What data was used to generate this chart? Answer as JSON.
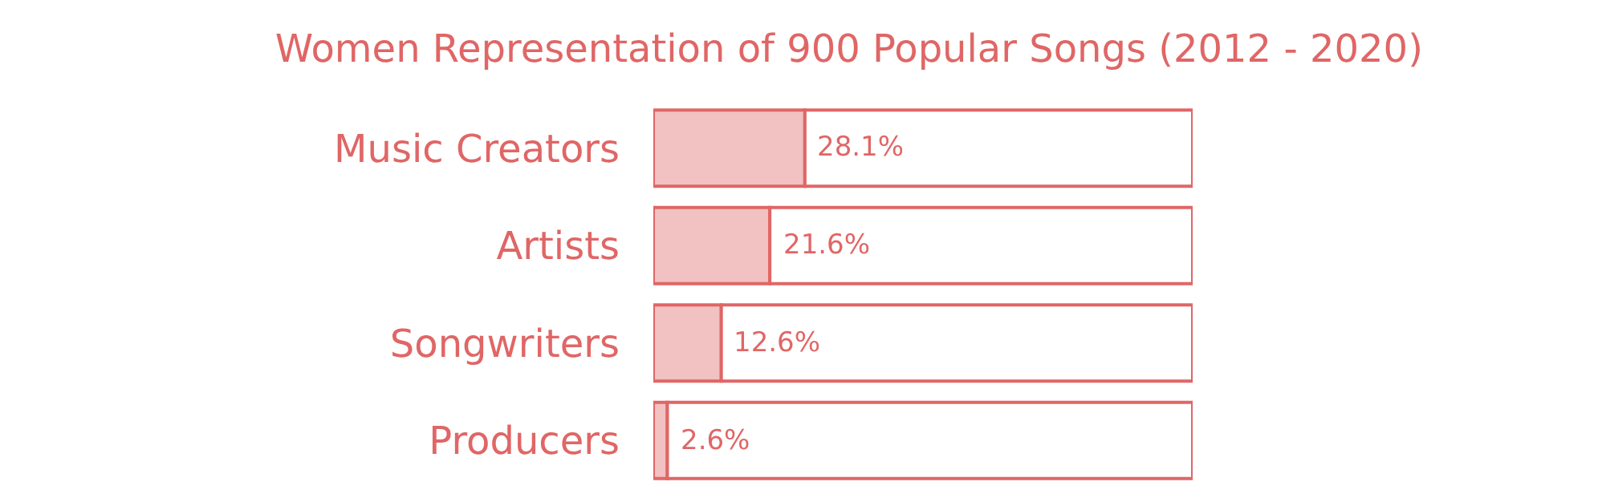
{
  "chart_data": {
    "type": "bar",
    "orientation": "horizontal",
    "stacked": true,
    "title": "Women Representation of 900 Popular Songs (2012 - 2020)",
    "categories": [
      "Music Creators",
      "Artists",
      "Songwriters",
      "Producers"
    ],
    "series": [
      {
        "color": "#f2c1c1",
        "values": [
          28.1,
          21.6,
          12.6,
          2.6
        ],
        "value_labels": [
          "28.1%",
          "21.6%",
          "12.6%",
          "2.6%"
        ]
      },
      {
        "color": "#ffffff",
        "values": [
          71.9,
          78.4,
          87.4,
          97.4
        ]
      }
    ],
    "xlim": [
      0,
      100
    ],
    "tick_labels": "y"
  }
}
